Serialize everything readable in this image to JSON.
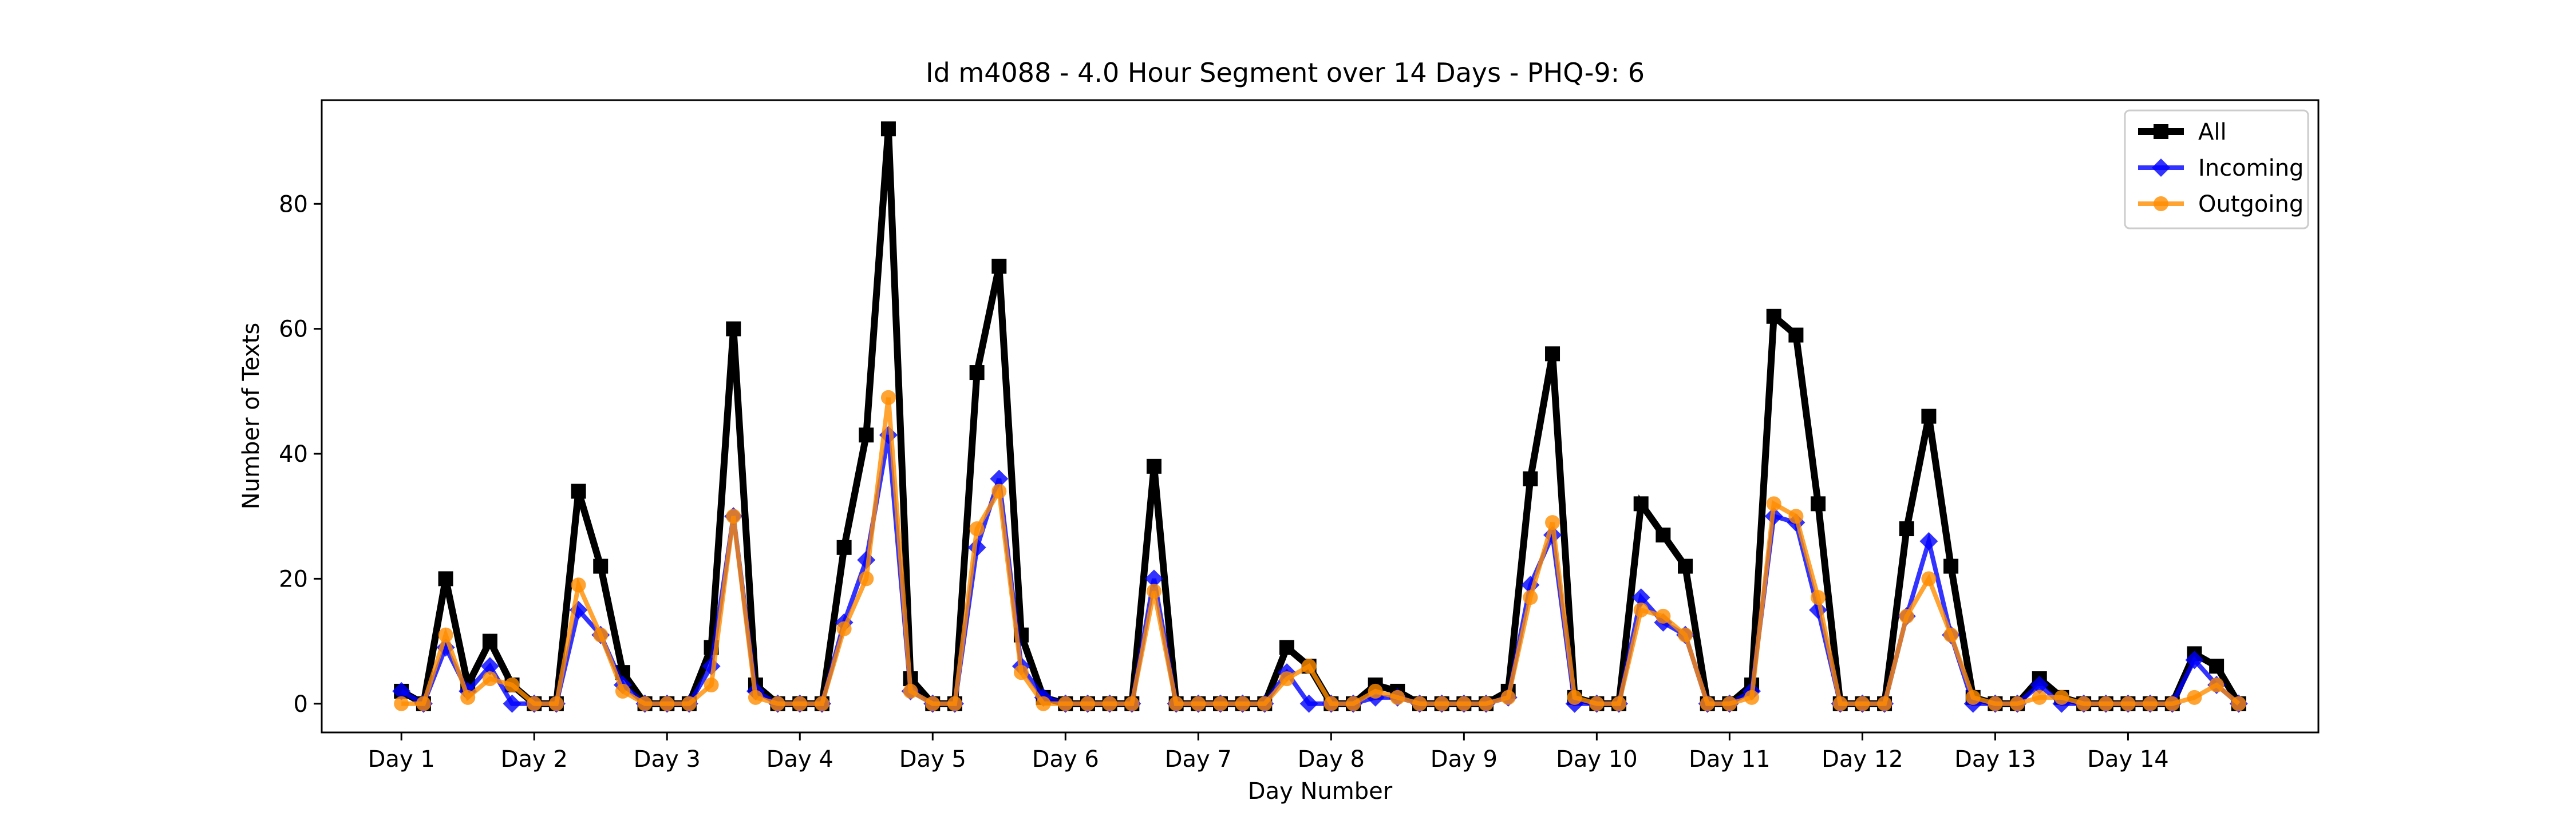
{
  "chart_data": {
    "type": "line",
    "title": "Id m4088 - 4.0 Hour Segment over 14 Days - PHQ-9: 6",
    "xlabel": "Day Number",
    "ylabel": "Number of Texts",
    "x_ticks": [
      "Day 1",
      "Day 2",
      "Day 3",
      "Day 4",
      "Day 5",
      "Day 6",
      "Day 7",
      "Day 8",
      "Day 9",
      "Day 10",
      "Day 11",
      "Day 12",
      "Day 13",
      "Day 14"
    ],
    "y_ticks": [
      0,
      20,
      40,
      60,
      80
    ],
    "points_per_day": 6,
    "ylim": [
      -4.6,
      96.6
    ],
    "xlim": [
      -3.6,
      86.6
    ],
    "grid": false,
    "legend": "top-right",
    "series": [
      {
        "name": "All",
        "color": "#000000",
        "marker": "square",
        "values": [
          2,
          0,
          20,
          3,
          10,
          3,
          0,
          0,
          34,
          22,
          5,
          0,
          0,
          0,
          9,
          60,
          3,
          0,
          0,
          0,
          25,
          43,
          92,
          4,
          0,
          0,
          53,
          70,
          11,
          1,
          0,
          0,
          0,
          0,
          38,
          0,
          0,
          0,
          0,
          0,
          9,
          6,
          0,
          0,
          3,
          2,
          0,
          0,
          0,
          0,
          2,
          36,
          56,
          1,
          0,
          0,
          32,
          27,
          22,
          0,
          0,
          3,
          62,
          59,
          32,
          0,
          0,
          0,
          28,
          46,
          22,
          1,
          0,
          0,
          4,
          1,
          0,
          0,
          0,
          0,
          0,
          8,
          6,
          0
        ]
      },
      {
        "name": "Incoming",
        "color": "#0000ff",
        "marker": "diamond",
        "values": [
          2,
          0,
          9,
          2,
          6,
          0,
          0,
          0,
          15,
          11,
          3,
          0,
          0,
          0,
          6,
          30,
          2,
          0,
          0,
          0,
          13,
          23,
          43,
          2,
          0,
          0,
          25,
          36,
          6,
          1,
          0,
          0,
          0,
          0,
          20,
          0,
          0,
          0,
          0,
          0,
          5,
          0,
          0,
          0,
          1,
          1,
          0,
          0,
          0,
          0,
          1,
          19,
          27,
          0,
          0,
          0,
          17,
          13,
          11,
          0,
          0,
          2,
          30,
          29,
          15,
          0,
          0,
          0,
          14,
          26,
          11,
          0,
          0,
          0,
          3,
          0,
          0,
          0,
          0,
          0,
          0,
          7,
          3,
          0
        ]
      },
      {
        "name": "Outgoing",
        "color": "#ff8c00",
        "marker": "circle",
        "values": [
          0,
          0,
          11,
          1,
          4,
          3,
          0,
          0,
          19,
          11,
          2,
          0,
          0,
          0,
          3,
          30,
          1,
          0,
          0,
          0,
          12,
          20,
          49,
          2,
          0,
          0,
          28,
          34,
          5,
          0,
          0,
          0,
          0,
          0,
          18,
          0,
          0,
          0,
          0,
          0,
          4,
          6,
          0,
          0,
          2,
          1,
          0,
          0,
          0,
          0,
          1,
          17,
          29,
          1,
          0,
          0,
          15,
          14,
          11,
          0,
          0,
          1,
          32,
          30,
          17,
          0,
          0,
          0,
          14,
          20,
          11,
          1,
          0,
          0,
          1,
          1,
          0,
          0,
          0,
          0,
          0,
          1,
          3,
          0
        ]
      }
    ]
  }
}
